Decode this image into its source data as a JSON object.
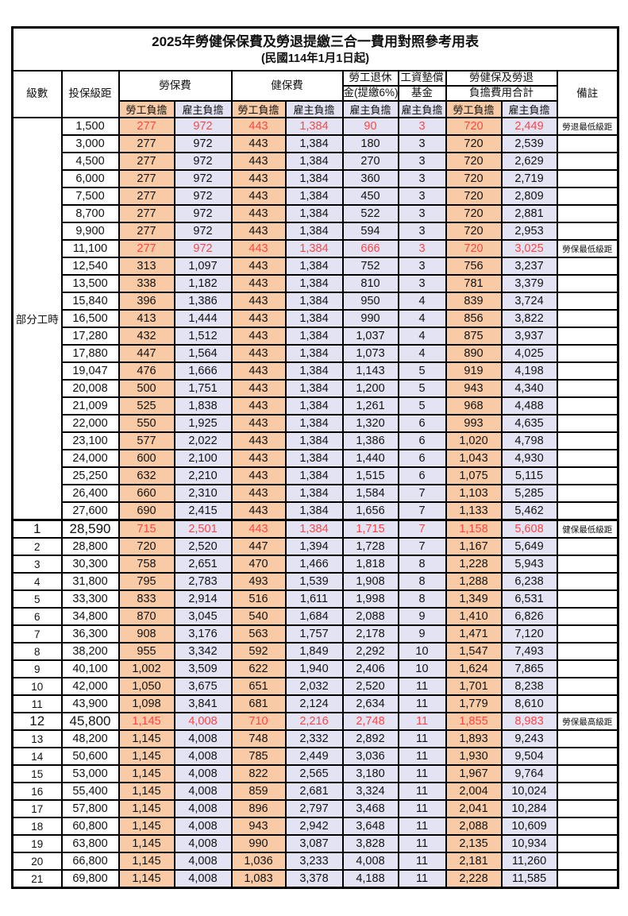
{
  "title": "2025年勞健保保費及勞退提繳三合一費用對照參考用表",
  "subtitle": "(民國114年1月1日起)",
  "colors": {
    "employee_fill": "#F8CBA6",
    "employer_fill": "#E4E3F3",
    "highlight_red": "#FF4646",
    "border": "#000000"
  },
  "header": {
    "level": "級數",
    "bracket": "投保級距",
    "labor_ins": "勞保費",
    "health_ins": "健保費",
    "pension_line1": "勞工退休",
    "pension_line2": "金(提繳6%)",
    "wage_fund_line1": "工資墊償",
    "wage_fund_line2": "基金",
    "total_line1": "勞健保及勞退",
    "total_line2": "負擔費用合計",
    "remark": "備註",
    "employee": "勞工負擔",
    "employer": "雇主負擔"
  },
  "rows": [
    {
      "level": "部分工時",
      "levelSpan": 23,
      "bracket": "1,500",
      "values": [
        "277",
        "972",
        "443",
        "1,384",
        "90",
        "3",
        "720",
        "2,449"
      ],
      "remark": "勞退最低級距",
      "red": true
    },
    {
      "bracket": "3,000",
      "values": [
        "277",
        "972",
        "443",
        "1,384",
        "180",
        "3",
        "720",
        "2,539"
      ]
    },
    {
      "bracket": "4,500",
      "values": [
        "277",
        "972",
        "443",
        "1,384",
        "270",
        "3",
        "720",
        "2,629"
      ]
    },
    {
      "bracket": "6,000",
      "values": [
        "277",
        "972",
        "443",
        "1,384",
        "360",
        "3",
        "720",
        "2,719"
      ]
    },
    {
      "bracket": "7,500",
      "values": [
        "277",
        "972",
        "443",
        "1,384",
        "450",
        "3",
        "720",
        "2,809"
      ]
    },
    {
      "bracket": "8,700",
      "values": [
        "277",
        "972",
        "443",
        "1,384",
        "522",
        "3",
        "720",
        "2,881"
      ]
    },
    {
      "bracket": "9,900",
      "values": [
        "277",
        "972",
        "443",
        "1,384",
        "594",
        "3",
        "720",
        "2,953"
      ]
    },
    {
      "bracket": "11,100",
      "values": [
        "277",
        "972",
        "443",
        "1,384",
        "666",
        "3",
        "720",
        "3,025"
      ],
      "remark": "勞保最低級距",
      "red": true
    },
    {
      "bracket": "12,540",
      "values": [
        "313",
        "1,097",
        "443",
        "1,384",
        "752",
        "3",
        "756",
        "3,237"
      ]
    },
    {
      "bracket": "13,500",
      "values": [
        "338",
        "1,182",
        "443",
        "1,384",
        "810",
        "3",
        "781",
        "3,379"
      ]
    },
    {
      "bracket": "15,840",
      "values": [
        "396",
        "1,386",
        "443",
        "1,384",
        "950",
        "4",
        "839",
        "3,724"
      ]
    },
    {
      "bracket": "16,500",
      "values": [
        "413",
        "1,444",
        "443",
        "1,384",
        "990",
        "4",
        "856",
        "3,822"
      ]
    },
    {
      "bracket": "17,280",
      "values": [
        "432",
        "1,512",
        "443",
        "1,384",
        "1,037",
        "4",
        "875",
        "3,937"
      ]
    },
    {
      "bracket": "17,880",
      "values": [
        "447",
        "1,564",
        "443",
        "1,384",
        "1,073",
        "4",
        "890",
        "4,025"
      ]
    },
    {
      "bracket": "19,047",
      "values": [
        "476",
        "1,666",
        "443",
        "1,384",
        "1,143",
        "5",
        "919",
        "4,198"
      ]
    },
    {
      "bracket": "20,008",
      "values": [
        "500",
        "1,751",
        "443",
        "1,384",
        "1,200",
        "5",
        "943",
        "4,340"
      ]
    },
    {
      "bracket": "21,009",
      "values": [
        "525",
        "1,838",
        "443",
        "1,384",
        "1,261",
        "5",
        "968",
        "4,488"
      ]
    },
    {
      "bracket": "22,000",
      "values": [
        "550",
        "1,925",
        "443",
        "1,384",
        "1,320",
        "6",
        "993",
        "4,635"
      ]
    },
    {
      "bracket": "23,100",
      "values": [
        "577",
        "2,022",
        "443",
        "1,384",
        "1,386",
        "6",
        "1,020",
        "4,798"
      ]
    },
    {
      "bracket": "24,000",
      "values": [
        "600",
        "2,100",
        "443",
        "1,384",
        "1,440",
        "6",
        "1,043",
        "4,930"
      ]
    },
    {
      "bracket": "25,250",
      "values": [
        "632",
        "2,210",
        "443",
        "1,384",
        "1,515",
        "6",
        "1,075",
        "5,115"
      ]
    },
    {
      "bracket": "26,400",
      "values": [
        "660",
        "2,310",
        "443",
        "1,384",
        "1,584",
        "7",
        "1,103",
        "5,285"
      ]
    },
    {
      "bracket": "27,600",
      "values": [
        "690",
        "2,415",
        "443",
        "1,384",
        "1,656",
        "7",
        "1,133",
        "5,462"
      ]
    },
    {
      "level": "1",
      "bracket": "28,590",
      "values": [
        "715",
        "2,501",
        "443",
        "1,384",
        "1,715",
        "7",
        "1,158",
        "5,608"
      ],
      "remark": "健保最低級距",
      "red": true,
      "big": true,
      "sep": true
    },
    {
      "level": "2",
      "bracket": "28,800",
      "values": [
        "720",
        "2,520",
        "447",
        "1,394",
        "1,728",
        "7",
        "1,167",
        "5,649"
      ]
    },
    {
      "level": "3",
      "bracket": "30,300",
      "values": [
        "758",
        "2,651",
        "470",
        "1,466",
        "1,818",
        "8",
        "1,228",
        "5,943"
      ]
    },
    {
      "level": "4",
      "bracket": "31,800",
      "values": [
        "795",
        "2,783",
        "493",
        "1,539",
        "1,908",
        "8",
        "1,288",
        "6,238"
      ]
    },
    {
      "level": "5",
      "bracket": "33,300",
      "values": [
        "833",
        "2,914",
        "516",
        "1,611",
        "1,998",
        "8",
        "1,349",
        "6,531"
      ]
    },
    {
      "level": "6",
      "bracket": "34,800",
      "values": [
        "870",
        "3,045",
        "540",
        "1,684",
        "2,088",
        "9",
        "1,410",
        "6,826"
      ]
    },
    {
      "level": "7",
      "bracket": "36,300",
      "values": [
        "908",
        "3,176",
        "563",
        "1,757",
        "2,178",
        "9",
        "1,471",
        "7,120"
      ]
    },
    {
      "level": "8",
      "bracket": "38,200",
      "values": [
        "955",
        "3,342",
        "592",
        "1,849",
        "2,292",
        "10",
        "1,547",
        "7,493"
      ]
    },
    {
      "level": "9",
      "bracket": "40,100",
      "values": [
        "1,002",
        "3,509",
        "622",
        "1,940",
        "2,406",
        "10",
        "1,624",
        "7,865"
      ]
    },
    {
      "level": "10",
      "bracket": "42,000",
      "values": [
        "1,050",
        "3,675",
        "651",
        "2,032",
        "2,520",
        "11",
        "1,701",
        "8,238"
      ]
    },
    {
      "level": "11",
      "bracket": "43,900",
      "values": [
        "1,098",
        "3,841",
        "681",
        "2,124",
        "2,634",
        "11",
        "1,779",
        "8,610"
      ]
    },
    {
      "level": "12",
      "bracket": "45,800",
      "values": [
        "1,145",
        "4,008",
        "710",
        "2,216",
        "2,748",
        "11",
        "1,855",
        "8,983"
      ],
      "remark": "勞保最高級距",
      "red": true,
      "big": true
    },
    {
      "level": "13",
      "bracket": "48,200",
      "values": [
        "1,145",
        "4,008",
        "748",
        "2,332",
        "2,892",
        "11",
        "1,893",
        "9,243"
      ]
    },
    {
      "level": "14",
      "bracket": "50,600",
      "values": [
        "1,145",
        "4,008",
        "785",
        "2,449",
        "3,036",
        "11",
        "1,930",
        "9,504"
      ]
    },
    {
      "level": "15",
      "bracket": "53,000",
      "values": [
        "1,145",
        "4,008",
        "822",
        "2,565",
        "3,180",
        "11",
        "1,967",
        "9,764"
      ]
    },
    {
      "level": "16",
      "bracket": "55,400",
      "values": [
        "1,145",
        "4,008",
        "859",
        "2,681",
        "3,324",
        "11",
        "2,004",
        "10,024"
      ]
    },
    {
      "level": "17",
      "bracket": "57,800",
      "values": [
        "1,145",
        "4,008",
        "896",
        "2,797",
        "3,468",
        "11",
        "2,041",
        "10,284"
      ]
    },
    {
      "level": "18",
      "bracket": "60,800",
      "values": [
        "1,145",
        "4,008",
        "943",
        "2,942",
        "3,648",
        "11",
        "2,088",
        "10,609"
      ]
    },
    {
      "level": "19",
      "bracket": "63,800",
      "values": [
        "1,145",
        "4,008",
        "990",
        "3,087",
        "3,828",
        "11",
        "2,135",
        "10,934"
      ]
    },
    {
      "level": "20",
      "bracket": "66,800",
      "values": [
        "1,145",
        "4,008",
        "1,036",
        "3,233",
        "4,008",
        "11",
        "2,181",
        "11,260"
      ]
    },
    {
      "level": "21",
      "bracket": "69,800",
      "values": [
        "1,145",
        "4,008",
        "1,083",
        "3,378",
        "4,188",
        "11",
        "2,228",
        "11,585"
      ]
    }
  ]
}
